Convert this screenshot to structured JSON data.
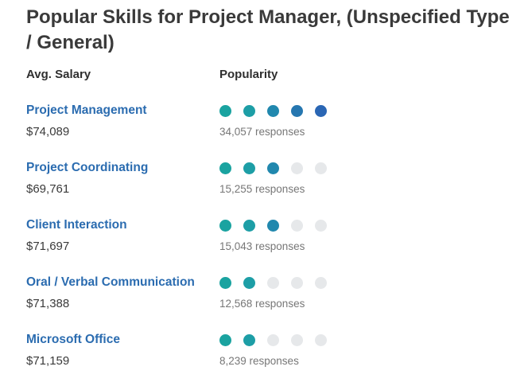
{
  "title": "Popular Skills for Project Manager, (Unspecified Type / General)",
  "headers": {
    "salary": "Avg. Salary",
    "popularity": "Popularity"
  },
  "colors": {
    "skill_link": "#2b6cb0",
    "dot_empty": "#e6e8ea",
    "dot_scale": [
      "#1aa3a0",
      "#1d9ea6",
      "#2188ae",
      "#2677b0",
      "#2a66b4"
    ]
  },
  "skills": [
    {
      "name": "Project Management",
      "salary": "$74,089",
      "responses": "34,057 responses",
      "popularity": 5
    },
    {
      "name": "Project Coordinating",
      "salary": "$69,761",
      "responses": "15,255 responses",
      "popularity": 3
    },
    {
      "name": "Client Interaction",
      "salary": "$71,697",
      "responses": "15,043 responses",
      "popularity": 3
    },
    {
      "name": "Oral / Verbal Communication",
      "salary": "$71,388",
      "responses": "12,568 responses",
      "popularity": 2
    },
    {
      "name": "Microsoft Office",
      "salary": "$71,159",
      "responses": "8,239 responses",
      "popularity": 2
    }
  ]
}
